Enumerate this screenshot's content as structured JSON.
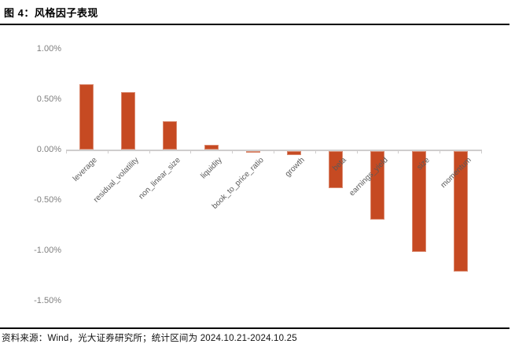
{
  "header": {
    "title": "图 4：风格因子表现"
  },
  "footer": {
    "source": "资料来源：Wind，光大证券研究所；统计区间为 2024.10.21-2024.10.25"
  },
  "chart_data": {
    "type": "bar",
    "title": "风格因子表现",
    "categories": [
      "leverage",
      "residual_volatility",
      "non_linear_size",
      "liquidity",
      "book_to_price_ratio",
      "growth",
      "beta",
      "earnings_yield",
      "size",
      "momentum"
    ],
    "values": [
      0.65,
      0.57,
      0.28,
      0.05,
      -0.02,
      -0.04,
      -0.37,
      -0.68,
      -1.0,
      -1.2
    ],
    "unit": "%",
    "xlabel": "",
    "ylabel": "",
    "ylim": [
      -1.5,
      1.0
    ],
    "y_ticks": [
      "1.00%",
      "0.50%",
      "0.00%",
      "-0.50%",
      "-1.00%",
      "-1.50%"
    ],
    "grid": false,
    "legend": "none",
    "bar_color": "#C64A22",
    "axis_color": "#CFCDCD",
    "tick_label_color": "#7F7F7F",
    "category_label_color": "#595959"
  }
}
